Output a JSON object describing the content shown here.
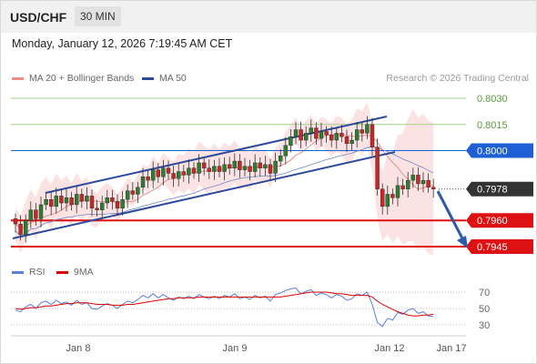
{
  "header": {
    "symbol": "USD/CHF",
    "interval": "30 MIN"
  },
  "datetime": "Monday, January 12, 2026 7:19:45 AM CET",
  "legend": {
    "ma20": {
      "label": "MA 20 + Bollinger Bands",
      "color": "#f08a8a"
    },
    "ma50": {
      "label": "MA 50",
      "color": "#2c4a9a"
    },
    "rsi": {
      "label": "RSI",
      "color": "#5b7fe0"
    },
    "ma9": {
      "label": "9MA",
      "color": "#dd0000"
    }
  },
  "research": "Research © 2026 Trading Central",
  "colors": {
    "green_level": "#9fd08a",
    "blue_level": "#1f5fd6",
    "red_level": "#dd1111",
    "bullish": "#2e7d32",
    "bearish": "#c62828",
    "channel": "#2c4a9a",
    "arrow": "#2a5aa8"
  },
  "chart_data": {
    "type": "candlestick",
    "price_range": [
      0.7938,
      0.8042
    ],
    "levels": [
      {
        "value": 0.803,
        "label": "0.8030",
        "style": "green"
      },
      {
        "value": 0.8015,
        "label": "0.8015",
        "style": "green"
      },
      {
        "value": 0.8,
        "label": "0.8000",
        "style": "blue"
      },
      {
        "value": 0.7978,
        "label": "0.7978",
        "style": "current"
      },
      {
        "value": 0.796,
        "label": "0.7960",
        "style": "red"
      },
      {
        "value": 0.7945,
        "label": "0.7945",
        "style": "red"
      }
    ],
    "x_labels": [
      "Jan 8",
      "Jan 9",
      "Jan 12",
      "Jan 17"
    ],
    "closes": [
      0.7958,
      0.7952,
      0.796,
      0.7966,
      0.7961,
      0.7969,
      0.7972,
      0.7968,
      0.7974,
      0.797,
      0.7973,
      0.7969,
      0.7975,
      0.7971,
      0.7974,
      0.7967,
      0.7966,
      0.797,
      0.7973,
      0.7971,
      0.7967,
      0.7972,
      0.7977,
      0.7975,
      0.7979,
      0.7985,
      0.7983,
      0.7989,
      0.7985,
      0.799,
      0.7987,
      0.7984,
      0.7988,
      0.7986,
      0.799,
      0.7987,
      0.7993,
      0.799,
      0.7988,
      0.7991,
      0.7988,
      0.7992,
      0.799,
      0.7994,
      0.7989,
      0.7991,
      0.7988,
      0.7993,
      0.799,
      0.7992,
      0.7987,
      0.7994,
      0.7997,
      0.8003,
      0.8008,
      0.8012,
      0.8006,
      0.801,
      0.8013,
      0.8007,
      0.8011,
      0.8009,
      0.8006,
      0.801,
      0.8008,
      0.8004,
      0.8006,
      0.8012,
      0.801,
      0.8015,
      0.8002,
      0.7978,
      0.7968,
      0.7975,
      0.7973,
      0.798,
      0.7978,
      0.7983,
      0.7986,
      0.7981,
      0.7983,
      0.7979,
      0.7978
    ],
    "rsi": {
      "ylim": [
        25,
        75
      ],
      "ticks": [
        70,
        50,
        30
      ]
    },
    "rsi_values": [
      48,
      46,
      52,
      55,
      50,
      57,
      59,
      55,
      60,
      56,
      58,
      54,
      60,
      55,
      57,
      50,
      49,
      53,
      56,
      54,
      50,
      55,
      59,
      57,
      61,
      66,
      63,
      68,
      63,
      67,
      63,
      60,
      64,
      62,
      65,
      62,
      67,
      64,
      62,
      65,
      62,
      66,
      64,
      68,
      62,
      64,
      61,
      66,
      63,
      65,
      59,
      67,
      69,
      72,
      74,
      75,
      68,
      71,
      73,
      66,
      69,
      67,
      63,
      67,
      65,
      60,
      62,
      68,
      66,
      70,
      55,
      33,
      28,
      38,
      36,
      45,
      43,
      48,
      50,
      44,
      46,
      41,
      40
    ],
    "ma9_values": [
      50,
      49,
      50,
      51,
      51,
      52,
      53,
      53,
      54,
      55,
      56,
      56,
      57,
      57,
      57,
      56,
      55,
      55,
      55,
      54,
      54,
      54,
      55,
      55,
      56,
      57,
      58,
      59,
      60,
      61,
      62,
      62,
      63,
      63,
      63,
      63,
      64,
      64,
      64,
      64,
      64,
      64,
      64,
      64,
      64,
      64,
      64,
      64,
      64,
      64,
      64,
      64,
      64,
      65,
      66,
      67,
      68,
      69,
      70,
      70,
      70,
      70,
      69,
      68,
      68,
      67,
      66,
      66,
      66,
      66,
      64,
      59,
      55,
      52,
      49,
      46,
      44,
      42,
      41,
      41,
      42,
      42,
      43
    ]
  }
}
